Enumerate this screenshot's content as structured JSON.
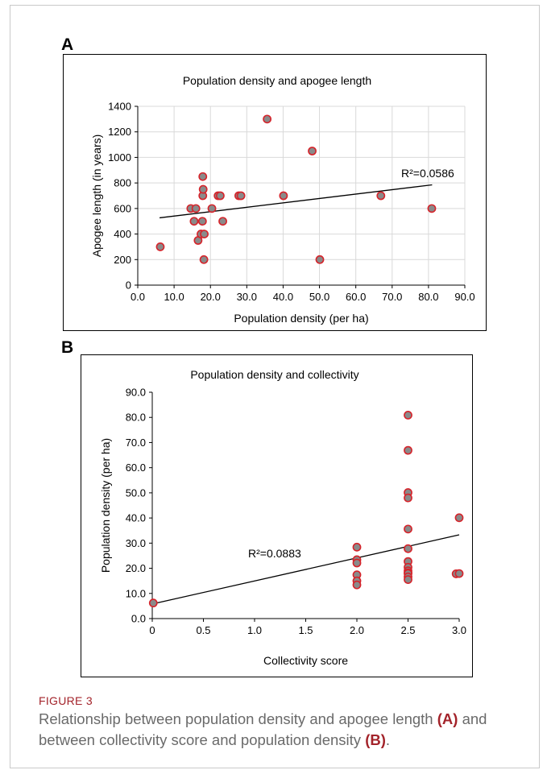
{
  "figure": {
    "label": "FIGURE 3",
    "caption_parts": [
      "Relationship between population density and apogee length ",
      "(A)",
      " and between collectivity score and population density ",
      "(B)",
      "."
    ]
  },
  "colors": {
    "marker_fill": "#8a8a8a",
    "marker_stroke": "#d6232a",
    "grid": "#d9d9d9",
    "caption_accent": "#a3232a",
    "caption_text": "#6a6a6a"
  },
  "chart_data": [
    {
      "panel": "A",
      "type": "scatter",
      "title": "Population density and apogee length",
      "xlabel": "Population density (per ha)",
      "ylabel": "Apogee length (in years)",
      "xlim": [
        0,
        90
      ],
      "ylim": [
        0,
        1400
      ],
      "xticks": [
        0,
        10,
        20,
        30,
        40,
        50,
        60,
        70,
        80,
        90
      ],
      "xtick_labels": [
        "0.0",
        "10.0",
        "20.0",
        "30.0",
        "40.0",
        "50.0",
        "60.0",
        "70.0",
        "80.0",
        "90.0"
      ],
      "yticks": [
        0,
        200,
        400,
        600,
        800,
        1000,
        1200,
        1400
      ],
      "ytick_labels": [
        "0",
        "200",
        "400",
        "600",
        "800",
        "1000",
        "1200",
        "1400"
      ],
      "grid": true,
      "points": [
        [
          6.2,
          300
        ],
        [
          14.6,
          600
        ],
        [
          15.5,
          500
        ],
        [
          16.0,
          600
        ],
        [
          16.6,
          350
        ],
        [
          17.4,
          400
        ],
        [
          17.8,
          500
        ],
        [
          17.9,
          850
        ],
        [
          17.9,
          700
        ],
        [
          18.0,
          750
        ],
        [
          18.2,
          200
        ],
        [
          18.3,
          400
        ],
        [
          20.4,
          600
        ],
        [
          22.1,
          700
        ],
        [
          22.7,
          700
        ],
        [
          23.4,
          500
        ],
        [
          27.8,
          700
        ],
        [
          28.4,
          700
        ],
        [
          35.6,
          1300
        ],
        [
          40.1,
          700
        ],
        [
          48.0,
          1050
        ],
        [
          50.1,
          200
        ],
        [
          66.9,
          700
        ],
        [
          80.9,
          600
        ]
      ],
      "trendline": {
        "x": [
          6,
          81
        ],
        "y": [
          527,
          785
        ],
        "label": "R²=0.0586"
      }
    },
    {
      "panel": "B",
      "type": "scatter",
      "title": "Population density and collectivity",
      "xlabel": "Collectivity score",
      "ylabel": "Population density (per ha)",
      "xlim": [
        0,
        3
      ],
      "ylim": [
        0,
        90
      ],
      "xticks": [
        0,
        0.5,
        1,
        1.5,
        2,
        2.5,
        3
      ],
      "xtick_labels": [
        "0",
        "0.5",
        "1.0",
        "1.5",
        "2.0",
        "2.5",
        "3.0"
      ],
      "yticks": [
        0,
        10,
        20,
        30,
        40,
        50,
        60,
        70,
        80,
        90
      ],
      "ytick_labels": [
        "0.0",
        "10.0",
        "20.0",
        "30.0",
        "40.0",
        "50.0",
        "60.0",
        "70.0",
        "80.0",
        "90.0"
      ],
      "grid": false,
      "points": [
        [
          0.01,
          6.2
        ],
        [
          2.0,
          28.4
        ],
        [
          2.0,
          23.4
        ],
        [
          2.0,
          22.1
        ],
        [
          2.0,
          17.4
        ],
        [
          2.0,
          15.0
        ],
        [
          2.0,
          13.4
        ],
        [
          2.5,
          80.9
        ],
        [
          2.5,
          66.9
        ],
        [
          2.5,
          50.1
        ],
        [
          2.5,
          48.0
        ],
        [
          2.5,
          35.6
        ],
        [
          2.5,
          27.8
        ],
        [
          2.5,
          22.7
        ],
        [
          2.5,
          20.4
        ],
        [
          2.5,
          19.0
        ],
        [
          2.5,
          18.2
        ],
        [
          2.5,
          17.9
        ],
        [
          2.5,
          16.6
        ],
        [
          2.5,
          15.5
        ],
        [
          2.97,
          17.8
        ],
        [
          3.0,
          17.9
        ],
        [
          3.0,
          40.1
        ]
      ],
      "trendline": {
        "x": [
          0,
          3
        ],
        "y": [
          5.8,
          33.3
        ],
        "label": "R²=0.0883"
      }
    }
  ]
}
